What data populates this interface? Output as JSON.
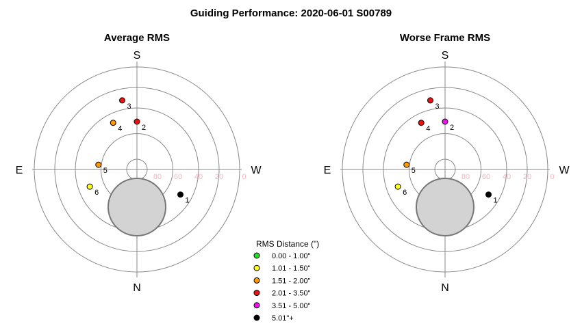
{
  "title": "Guiding Performance: 2020-06-01 S00789",
  "chart_data": [
    {
      "type": "scatter",
      "subtitle": "Average RMS",
      "coordinate_system": "polar (azimuth/altitude)",
      "directions": {
        "top": "S",
        "bottom": "N",
        "left": "E",
        "right": "W"
      },
      "radial_ticks": [
        "80",
        "60",
        "40",
        "20",
        "0"
      ],
      "grid": true,
      "points": [
        {
          "label": "1",
          "azimuth_deg": 300,
          "altitude_deg": 46,
          "category": "5.01\"+"
        },
        {
          "label": "2",
          "azimuth_deg": 180,
          "altitude_deg": 48,
          "category": "2.01 - 3.50\""
        },
        {
          "label": "3",
          "azimuth_deg": 168,
          "altitude_deg": 28,
          "category": "2.01 - 3.50\""
        },
        {
          "label": "4",
          "azimuth_deg": 153,
          "altitude_deg": 44,
          "category": "1.51 - 2.00\""
        },
        {
          "label": "5",
          "azimuth_deg": 97,
          "altitude_deg": 56,
          "category": "1.51 - 2.00\""
        },
        {
          "label": "6",
          "azimuth_deg": 70,
          "altitude_deg": 46,
          "category": "1.01 - 1.50\""
        }
      ]
    },
    {
      "type": "scatter",
      "subtitle": "Worse Frame RMS",
      "coordinate_system": "polar (azimuth/altitude)",
      "directions": {
        "top": "S",
        "bottom": "N",
        "left": "E",
        "right": "W"
      },
      "radial_ticks": [
        "80",
        "60",
        "40",
        "20",
        "0"
      ],
      "grid": true,
      "points": [
        {
          "label": "1",
          "azimuth_deg": 300,
          "altitude_deg": 46,
          "category": "5.01\"+"
        },
        {
          "label": "2",
          "azimuth_deg": 180,
          "altitude_deg": 48,
          "category": "3.51 - 5.00\""
        },
        {
          "label": "3",
          "azimuth_deg": 168,
          "altitude_deg": 28,
          "category": "2.01 - 3.50\""
        },
        {
          "label": "4",
          "azimuth_deg": 153,
          "altitude_deg": 44,
          "category": "2.01 - 3.50\""
        },
        {
          "label": "5",
          "azimuth_deg": 97,
          "altitude_deg": 56,
          "category": "1.51 - 2.00\""
        },
        {
          "label": "6",
          "azimuth_deg": 70,
          "altitude_deg": 46,
          "category": "1.01 - 1.50\""
        }
      ]
    }
  ],
  "legend": {
    "title": "RMS Distance (\")",
    "placement": "bottom-center",
    "items": [
      {
        "label": "0.00 - 1.00\"",
        "color": "#22dd22"
      },
      {
        "label": "1.01 - 1.50\"",
        "color": "#ffff22"
      },
      {
        "label": "1.51 - 2.00\"",
        "color": "#ff9900"
      },
      {
        "label": "2.01 - 3.50\"",
        "color": "#ee1111"
      },
      {
        "label": "3.51 - 5.00\"",
        "color": "#ee11ee"
      },
      {
        "label": "5.01\"+",
        "color": "#000000"
      }
    ]
  },
  "colors": {
    "grid": "#888888",
    "ticks": "#f4b6c2",
    "mask_fill": "#d3d3d3",
    "mask_stroke": "#777777"
  }
}
